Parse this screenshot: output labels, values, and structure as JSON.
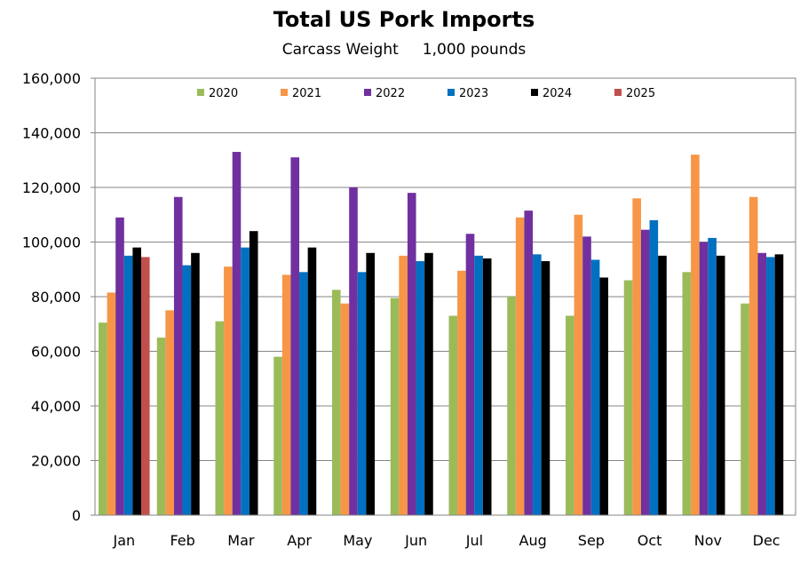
{
  "chart_data": {
    "type": "bar",
    "title": "Total US Pork Imports",
    "subtitle": "Carcass Weight     1,000 pounds",
    "categories": [
      "Jan",
      "Feb",
      "Mar",
      "Apr",
      "May",
      "Jun",
      "Jul",
      "Aug",
      "Sep",
      "Oct",
      "Nov",
      "Dec"
    ],
    "ylim": [
      0,
      160000
    ],
    "yticks": [
      0,
      20000,
      40000,
      60000,
      80000,
      100000,
      120000,
      140000,
      160000
    ],
    "ytick_labels": [
      "0",
      "20,000",
      "40,000",
      "60,000",
      "80,000",
      "100,000",
      "120,000",
      "140,000",
      "160,000"
    ],
    "grid": true,
    "legend_position": "top",
    "series": [
      {
        "name": "2020",
        "color": "#9bbb59",
        "values": [
          70500,
          65000,
          71000,
          58000,
          82500,
          79500,
          73000,
          80000,
          73000,
          86000,
          89000,
          77500
        ]
      },
      {
        "name": "2021",
        "color": "#f79646",
        "values": [
          81500,
          75000,
          91000,
          88000,
          77500,
          95000,
          89500,
          109000,
          110000,
          116000,
          132000,
          116500
        ]
      },
      {
        "name": "2022",
        "color": "#7030a0",
        "values": [
          109000,
          116500,
          133000,
          131000,
          120000,
          118000,
          103000,
          111500,
          102000,
          104500,
          100000,
          96000
        ]
      },
      {
        "name": "2023",
        "color": "#0070c0",
        "values": [
          95000,
          91500,
          98000,
          89000,
          89000,
          93000,
          95000,
          95500,
          93500,
          108000,
          101500,
          94500
        ]
      },
      {
        "name": "2024",
        "color": "#000000",
        "values": [
          98000,
          96000,
          104000,
          98000,
          96000,
          96000,
          94000,
          93000,
          87000,
          95000,
          95000,
          95500
        ]
      },
      {
        "name": "2025",
        "color": "#c0504d",
        "values": [
          94500,
          null,
          null,
          null,
          null,
          null,
          null,
          null,
          null,
          null,
          null,
          null
        ]
      }
    ]
  }
}
